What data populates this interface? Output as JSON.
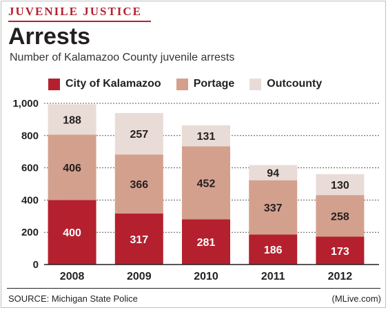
{
  "header": {
    "kicker": "JUVENILE JUSTICE",
    "title": "Arrests",
    "subtitle": "Number of Kalamazoo County juvenile arrests"
  },
  "footer": {
    "source": "SOURCE: Michigan State Police",
    "credit": "(MLive.com)"
  },
  "colors": {
    "city": "#b5202e",
    "portage": "#d4a08e",
    "outcounty": "#e9dcd7",
    "accent": "#b5202e"
  },
  "chart_data": {
    "type": "bar",
    "stacked": true,
    "categories": [
      "2008",
      "2009",
      "2010",
      "2011",
      "2012"
    ],
    "series": [
      {
        "name": "City of Kalamazoo",
        "values": [
          400,
          317,
          281,
          186,
          173
        ]
      },
      {
        "name": "Portage",
        "values": [
          406,
          366,
          452,
          337,
          258
        ]
      },
      {
        "name": "Outcounty",
        "values": [
          188,
          257,
          131,
          94,
          130
        ]
      }
    ],
    "ylim": [
      0,
      1000
    ],
    "yticks": [
      "0",
      "200",
      "400",
      "600",
      "800",
      "1,000"
    ],
    "ytick_values": [
      0,
      200,
      400,
      600,
      800,
      1000
    ],
    "grid": true,
    "legend": "top"
  }
}
